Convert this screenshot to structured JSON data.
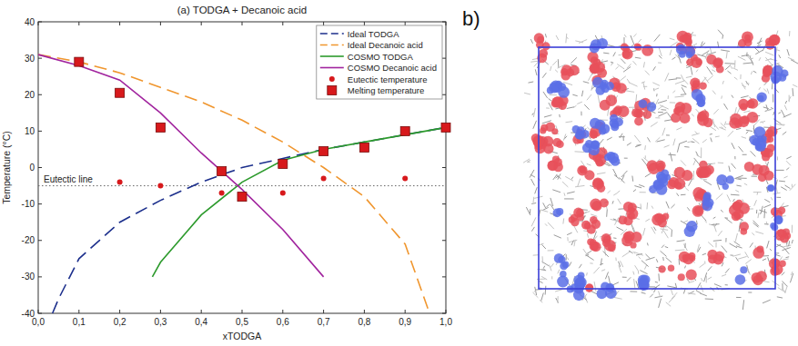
{
  "chart_data": {
    "type": "line",
    "title": "(a) TODGA + Decanoic acid",
    "x_label": "xTODGA",
    "y_label": "Temperature (°C)",
    "xlim": [
      0,
      1
    ],
    "ylim": [
      -40,
      40
    ],
    "xticks": [
      {
        "value": 0,
        "label": "0,0"
      },
      {
        "value": 0.1,
        "label": "0,1"
      },
      {
        "value": 0.2,
        "label": "0,2"
      },
      {
        "value": 0.3,
        "label": "0,3"
      },
      {
        "value": 0.4,
        "label": "0,4"
      },
      {
        "value": 0.5,
        "label": "0,5"
      },
      {
        "value": 0.6,
        "label": "0,6"
      },
      {
        "value": 0.7,
        "label": "0,7"
      },
      {
        "value": 0.8,
        "label": "0,8"
      },
      {
        "value": 0.9,
        "label": "0,9"
      },
      {
        "value": 1,
        "label": "1,0"
      }
    ],
    "yticks": [
      -40,
      -30,
      -20,
      -10,
      0,
      10,
      20,
      30,
      40
    ],
    "grid": false,
    "legend": "upper right",
    "reference_line": {
      "value": -5,
      "label": "Eutectic line"
    },
    "series": [
      {
        "name": "Ideal TODGA",
        "type": "line",
        "color": "#1c2f8c",
        "line_style": "dashed",
        "x": [
          0.035,
          0.05,
          0.1,
          0.2,
          0.3,
          0.4,
          0.5,
          0.6,
          0.7,
          0.8,
          0.9,
          1.0
        ],
        "values": [
          -40,
          -36,
          -25,
          -15,
          -9,
          -4,
          0,
          2.5,
          5,
          7,
          9,
          11
        ]
      },
      {
        "name": "Ideal Decanoic acid",
        "type": "line",
        "color": "#f0962e",
        "line_style": "dashed",
        "x": [
          0,
          0.1,
          0.2,
          0.3,
          0.4,
          0.5,
          0.6,
          0.7,
          0.8,
          0.9,
          0.96
        ],
        "values": [
          31,
          29,
          26,
          22,
          18,
          13,
          7,
          0,
          -8,
          -21,
          -40
        ]
      },
      {
        "name": "COSMO TODGA",
        "type": "line",
        "color": "#2c9a2c",
        "line_style": "solid",
        "x": [
          0.28,
          0.3,
          0.4,
          0.5,
          0.6,
          0.7,
          0.8,
          0.9,
          1.0
        ],
        "values": [
          -30,
          -26,
          -13,
          -4,
          2,
          5,
          7,
          9,
          11
        ]
      },
      {
        "name": "COSMO Decanoic acid",
        "type": "line",
        "color": "#a1249e",
        "line_style": "solid",
        "x": [
          0,
          0.1,
          0.2,
          0.3,
          0.4,
          0.5,
          0.6,
          0.7
        ],
        "values": [
          31,
          28,
          24,
          15,
          4,
          -6,
          -17,
          -30
        ]
      },
      {
        "name": "Eutectic temperature",
        "type": "scatter",
        "color": "#d7191c",
        "marker": "circle",
        "x": [
          0.2,
          0.3,
          0.45,
          0.6,
          0.7,
          0.9
        ],
        "values": [
          -4,
          -5,
          -7,
          -7,
          -3,
          -3
        ]
      },
      {
        "name": "Melting temperature",
        "type": "scatter",
        "color": "#d7191c",
        "marker": "square",
        "x": [
          0.1,
          0.2,
          0.3,
          0.45,
          0.5,
          0.6,
          0.7,
          0.8,
          0.9,
          1.0
        ],
        "values": [
          29,
          20.5,
          11,
          -1,
          -8,
          1,
          4.5,
          5.5,
          10,
          11
        ]
      }
    ]
  },
  "panel_b": {
    "label": "b)"
  }
}
